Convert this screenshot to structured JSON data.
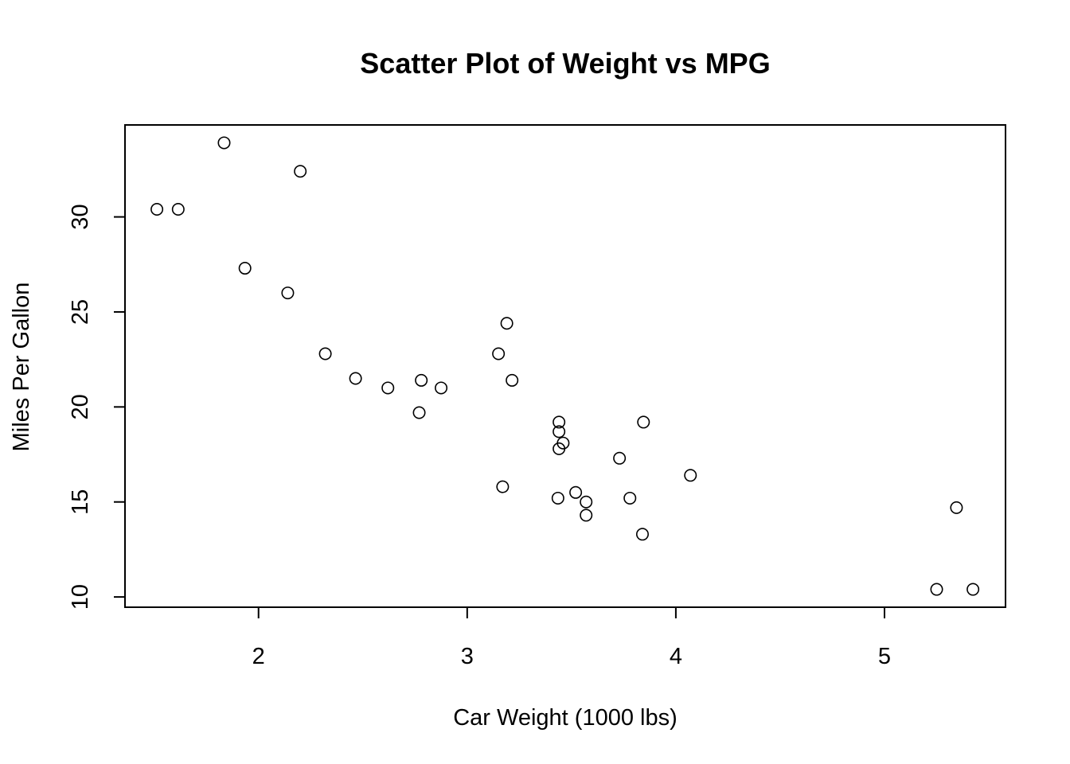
{
  "chart_data": {
    "type": "scatter",
    "title": "Scatter Plot of Weight vs MPG",
    "xlabel": "Car Weight (1000 lbs)",
    "ylabel": "Miles Per Gallon",
    "xlim": [
      1.36,
      5.58
    ],
    "ylim": [
      9.46,
      34.84
    ],
    "x_ticks": [
      2,
      3,
      4,
      5
    ],
    "y_ticks": [
      10,
      15,
      20,
      25,
      30
    ],
    "grid": false,
    "points": [
      {
        "x": 2.62,
        "y": 21.0
      },
      {
        "x": 2.875,
        "y": 21.0
      },
      {
        "x": 2.32,
        "y": 22.8
      },
      {
        "x": 3.215,
        "y": 21.4
      },
      {
        "x": 3.44,
        "y": 18.7
      },
      {
        "x": 3.46,
        "y": 18.1
      },
      {
        "x": 3.57,
        "y": 14.3
      },
      {
        "x": 3.19,
        "y": 24.4
      },
      {
        "x": 3.15,
        "y": 22.8
      },
      {
        "x": 3.44,
        "y": 19.2
      },
      {
        "x": 3.44,
        "y": 17.8
      },
      {
        "x": 4.07,
        "y": 16.4
      },
      {
        "x": 3.73,
        "y": 17.3
      },
      {
        "x": 3.78,
        "y": 15.2
      },
      {
        "x": 5.25,
        "y": 10.4
      },
      {
        "x": 5.424,
        "y": 10.4
      },
      {
        "x": 5.345,
        "y": 14.7
      },
      {
        "x": 2.2,
        "y": 32.4
      },
      {
        "x": 1.615,
        "y": 30.4
      },
      {
        "x": 1.835,
        "y": 33.9
      },
      {
        "x": 2.465,
        "y": 21.5
      },
      {
        "x": 3.52,
        "y": 15.5
      },
      {
        "x": 3.435,
        "y": 15.2
      },
      {
        "x": 3.84,
        "y": 13.3
      },
      {
        "x": 3.845,
        "y": 19.2
      },
      {
        "x": 1.935,
        "y": 27.3
      },
      {
        "x": 2.14,
        "y": 26.0
      },
      {
        "x": 1.513,
        "y": 30.4
      },
      {
        "x": 3.17,
        "y": 15.8
      },
      {
        "x": 2.77,
        "y": 19.7
      },
      {
        "x": 3.57,
        "y": 15.0
      },
      {
        "x": 2.78,
        "y": 21.4
      }
    ]
  }
}
